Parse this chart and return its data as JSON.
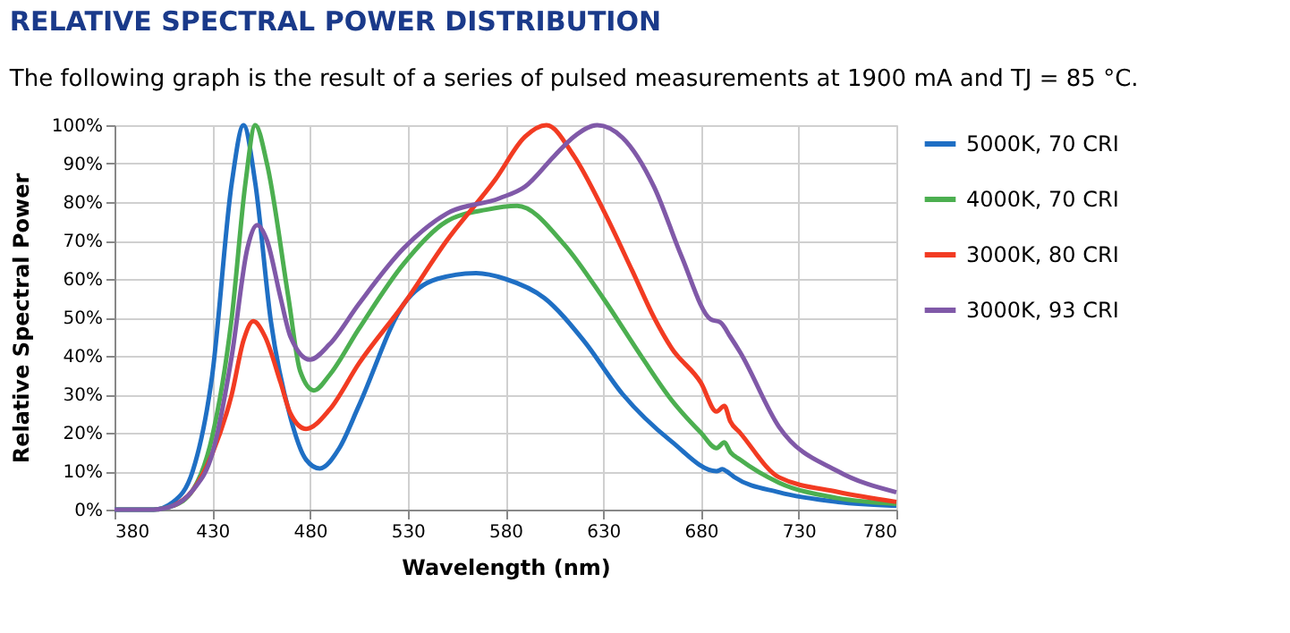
{
  "chart_data": {
    "type": "line",
    "title": "RELATIVE SPECTRAL POWER DISTRIBUTION",
    "subtitle": "The following graph is the result of a series of pulsed measurements at 1900 mA and TJ = 85 °C.",
    "xlabel": "Wavelength (nm)",
    "ylabel": "Relative Spectral Power",
    "xlim": [
      380,
      780
    ],
    "xticks": [
      380,
      430,
      480,
      530,
      580,
      630,
      680,
      730,
      780
    ],
    "ylim": [
      0,
      100
    ],
    "yticks": [
      {
        "value": 0,
        "label": "0%"
      },
      {
        "value": 10,
        "label": "10%"
      },
      {
        "value": 20,
        "label": "20%"
      },
      {
        "value": 30,
        "label": "30%"
      },
      {
        "value": 40,
        "label": "40%"
      },
      {
        "value": 50,
        "label": "50%"
      },
      {
        "value": 60,
        "label": "60%"
      },
      {
        "value": 70,
        "label": "70%"
      },
      {
        "value": 80,
        "label": "80%"
      },
      {
        "value": 90,
        "label": "90%"
      },
      {
        "value": 100,
        "label": "100%"
      }
    ],
    "grid": true,
    "legend": "right",
    "marker": "none",
    "line_style": "solid",
    "series": [
      {
        "name": "5000K, 70 CRI",
        "color": "#1f6fc4",
        "x": [
          380,
          400,
          410,
          420,
          430,
          440,
          446,
          452,
          460,
          470,
          478,
          485,
          495,
          505,
          528,
          545,
          565,
          580,
          600,
          620,
          640,
          665,
          688,
          691,
          693,
          697,
          720,
          750,
          780
        ],
        "values": [
          0,
          0,
          2,
          10,
          35,
          85,
          100,
          85,
          49,
          24,
          13,
          10.7,
          16,
          27,
          53.5,
          60,
          61.5,
          60,
          55,
          44,
          30,
          17.7,
          10,
          10.5,
          10,
          8.5,
          4.5,
          2,
          1
        ]
      },
      {
        "name": "4000K, 70 CRI",
        "color": "#4caf50",
        "x": [
          380,
          400,
          410,
          420,
          430,
          440,
          447,
          452,
          458,
          469,
          475,
          482,
          490,
          505,
          528,
          550,
          570,
          586,
          610,
          630,
          650,
          665,
          680,
          688,
          692,
          695,
          700,
          720,
          750,
          780
        ],
        "values": [
          0,
          0,
          1,
          5,
          19,
          50,
          85,
          100,
          90,
          55,
          36,
          31,
          35,
          47,
          64,
          75,
          78,
          79,
          69,
          55,
          39.5,
          28.5,
          20,
          16,
          17.5,
          15,
          13,
          7,
          3,
          1.5
        ]
      },
      {
        "name": "3000K, 80 CRI",
        "color": "#f23b22",
        "x": [
          410,
          420,
          430,
          440,
          446,
          451,
          457,
          465,
          470,
          478,
          490,
          505,
          528,
          550,
          575,
          590,
          601,
          615,
          630,
          645,
          656,
          665,
          680,
          688,
          692,
          695,
          700,
          720,
          750,
          780
        ],
        "values": [
          1,
          5,
          14.5,
          30,
          44,
          49,
          45,
          33,
          25,
          21,
          26,
          38,
          53.5,
          70,
          86,
          97,
          100,
          92,
          78,
          62,
          50,
          42,
          33,
          25.5,
          27,
          23,
          20,
          8.4,
          4.6,
          2
        ]
      },
      {
        "name": "3000K, 93 CRI",
        "color": "#8059a8",
        "x": [
          380,
          400,
          410,
          420,
          430,
          440,
          448,
          453,
          458,
          465,
          470,
          480,
          490,
          505,
          528,
          550,
          577,
          590,
          605,
          615,
          627,
          640,
          656,
          670,
          685,
          690,
          695,
          700,
          720,
          750,
          780
        ],
        "values": [
          0,
          0,
          1,
          5,
          14.5,
          40,
          68,
          74,
          70,
          55,
          45,
          39,
          43,
          53.5,
          68,
          77,
          81,
          84,
          92,
          97,
          100,
          96.7,
          84,
          66,
          49.5,
          48.7,
          45,
          41,
          21.5,
          10,
          4.5
        ]
      }
    ]
  }
}
